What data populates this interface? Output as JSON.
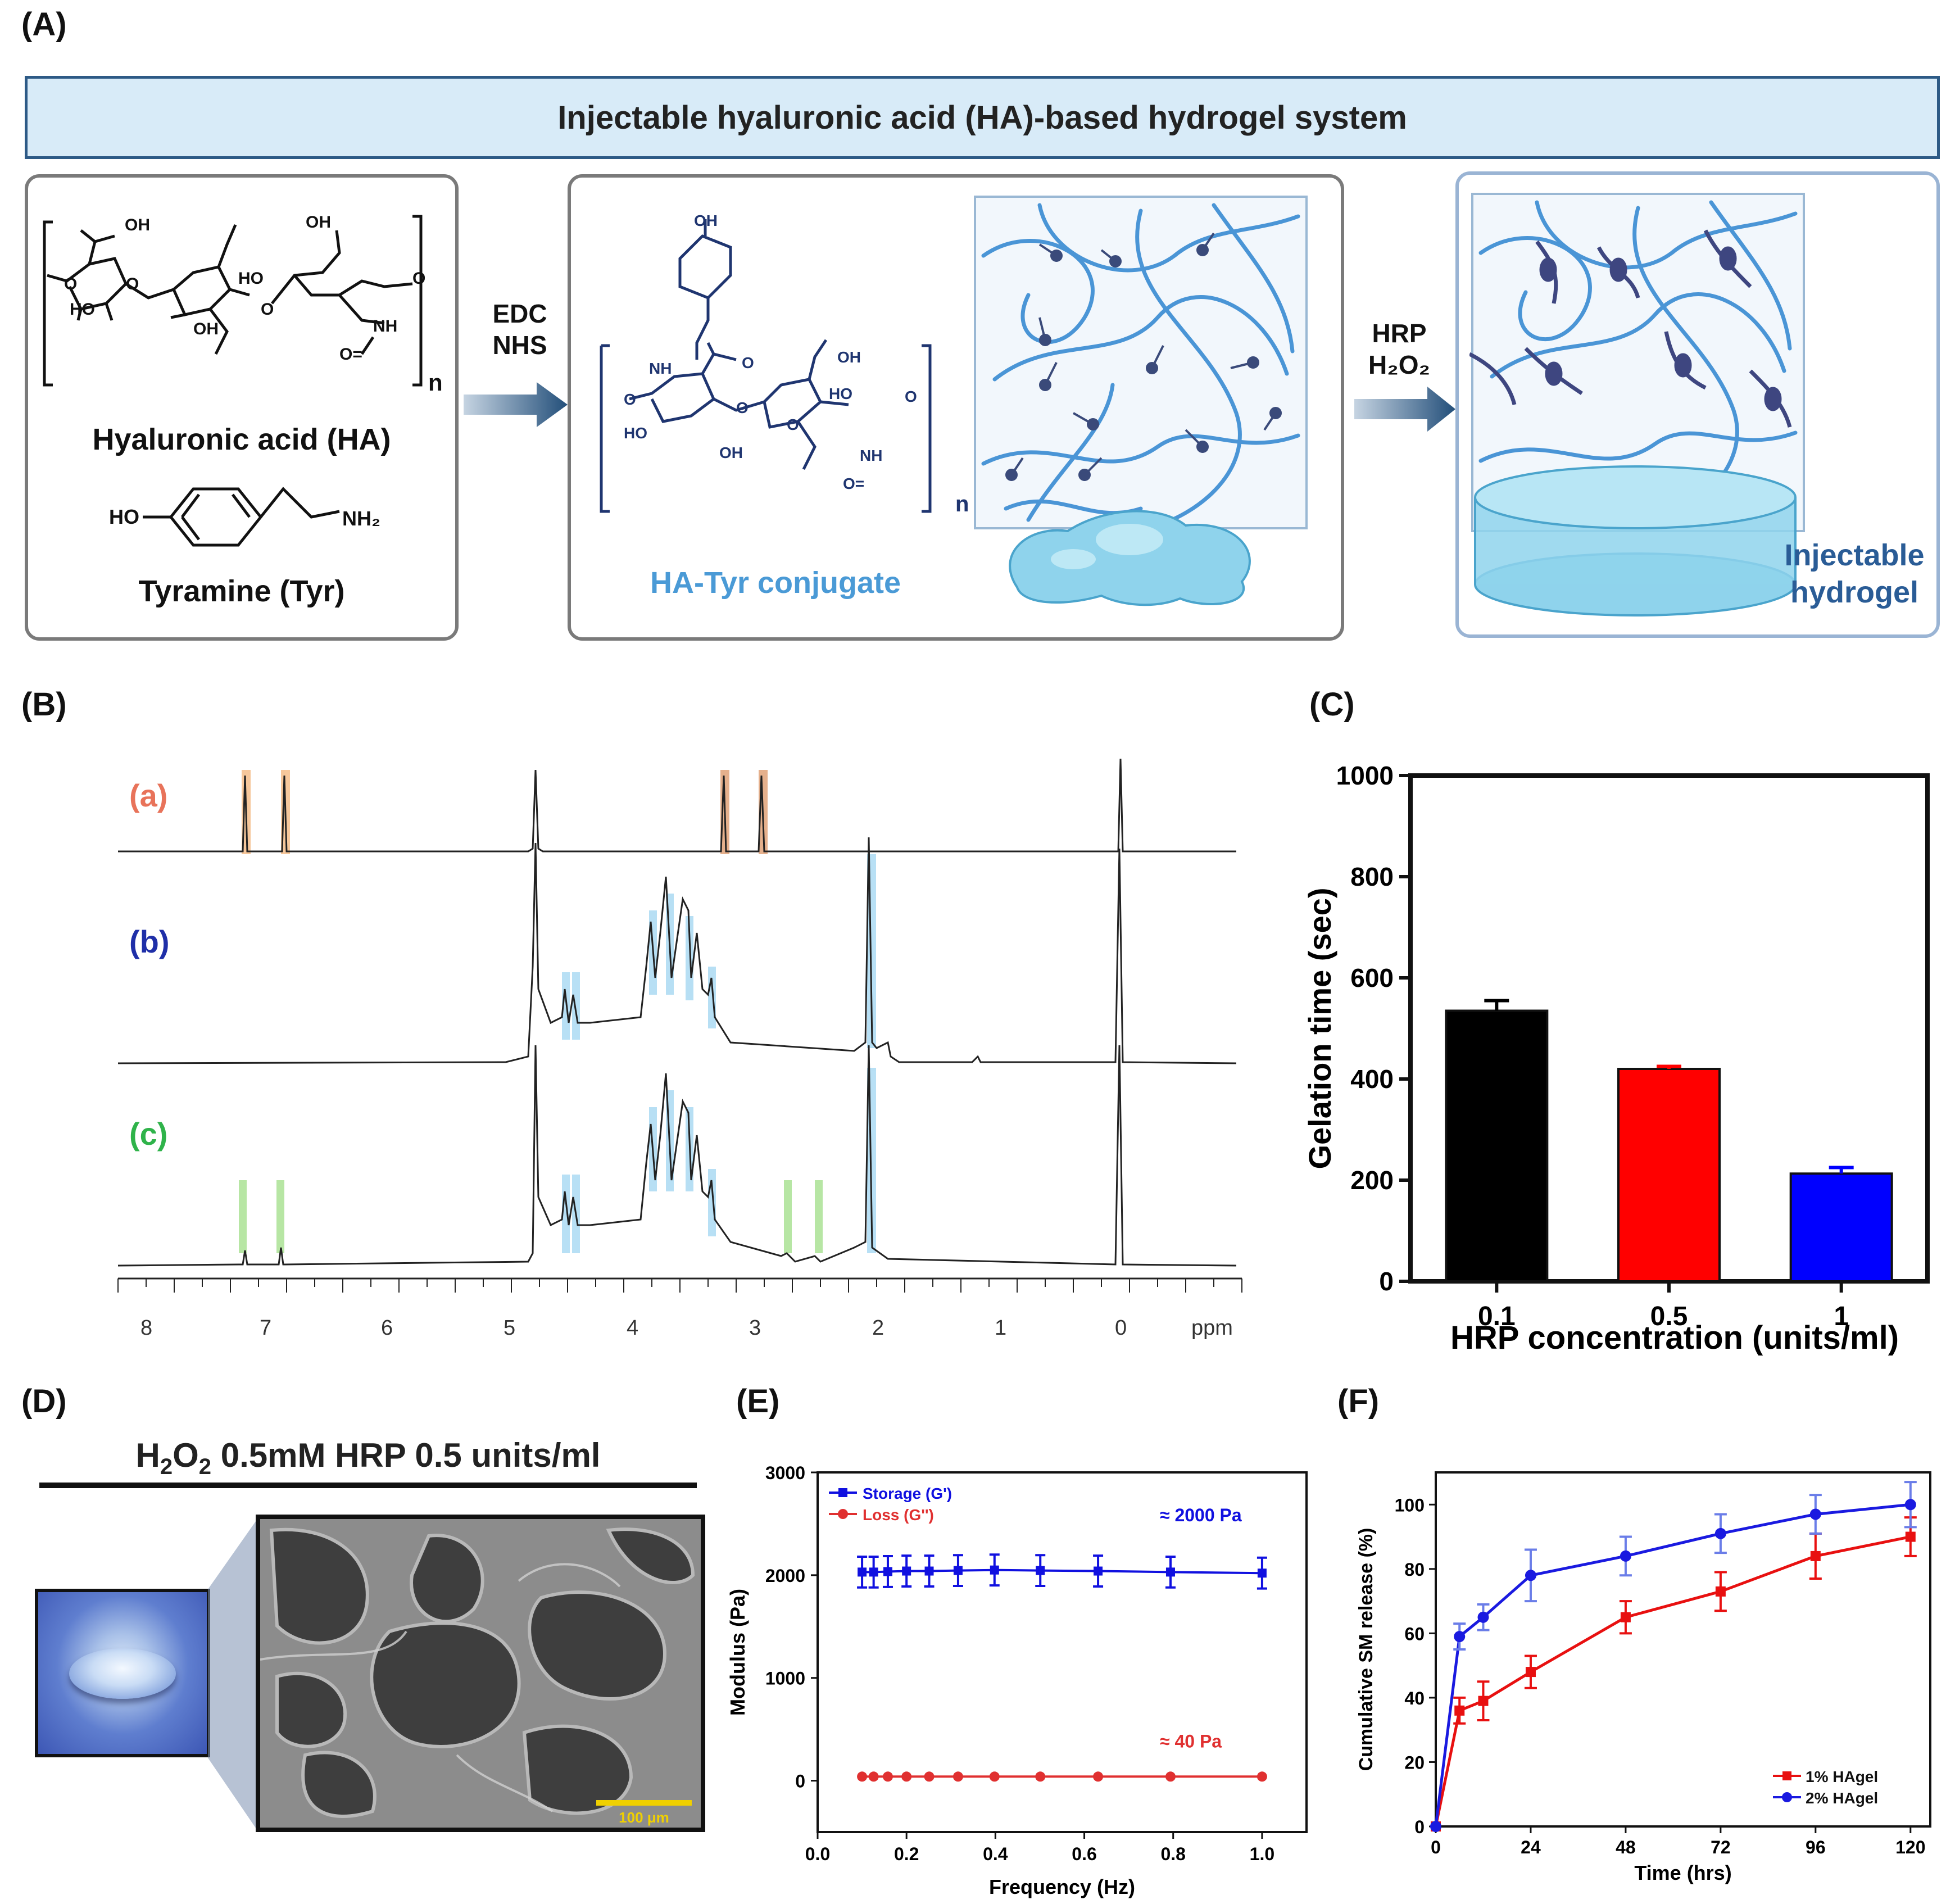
{
  "panels": {
    "A": "(A)",
    "B": "(B)",
    "C": "(C)",
    "D": "(D)",
    "E": "(E)",
    "F": "(F)"
  },
  "panelA": {
    "banner": "Injectable hyaluronic acid (HA)-based hydrogel system",
    "ha_label": "Hyaluronic acid (HA)",
    "tyr_label": "Tyramine (Tyr)",
    "step1": [
      "EDC",
      "NHS"
    ],
    "conjugate_label": "HA-Tyr conjugate",
    "step2": [
      "HRP",
      "H₂O₂"
    ],
    "hydrogel_label": [
      "Injectable",
      "hydrogel"
    ],
    "chem_text": {
      "oh": "OH",
      "ho": "HO",
      "nh": "NH",
      "o": "O",
      "n": "n",
      "nh2": "NH₂",
      "c_eq_o": "O="
    }
  },
  "panelB": {
    "traces": [
      "(a)",
      "(b)",
      "(c)"
    ],
    "trace_colors": [
      "#e8735a",
      "#1f2fa8",
      "#2fb34a"
    ],
    "ticks": [
      "8",
      "7",
      "6",
      "5",
      "4",
      "3",
      "2",
      "1",
      "0"
    ],
    "unit": "ppm"
  },
  "chart_data": [
    {
      "panel": "C",
      "type": "bar",
      "categories": [
        "0.1",
        "0.5",
        "1"
      ],
      "values": [
        535,
        420,
        213
      ],
      "errors": [
        20,
        5,
        12
      ],
      "colors": [
        "#000000",
        "#ff0000",
        "#0000ff"
      ],
      "ylabel": "Gelation time (sec)",
      "xlabel": "HRP concentration (units/ml)",
      "ylim": [
        0,
        1000
      ],
      "yticks": [
        "0",
        "200",
        "400",
        "600",
        "800",
        "1000"
      ]
    },
    {
      "panel": "E",
      "type": "line",
      "x": [
        0.1,
        0.126,
        0.158,
        0.2,
        0.251,
        0.316,
        0.398,
        0.501,
        0.631,
        0.794,
        1.0
      ],
      "series": [
        {
          "name": "Storage (G')",
          "color": "#1010e0",
          "values": [
            2030,
            2030,
            2035,
            2040,
            2040,
            2045,
            2050,
            2045,
            2040,
            2030,
            2020
          ],
          "error": 150
        },
        {
          "name": "Loss (G'')",
          "color": "#e03030",
          "values": [
            40,
            40,
            40,
            40,
            40,
            40,
            40,
            40,
            40,
            40,
            40
          ],
          "error": 0
        }
      ],
      "annotations": [
        "≈ 2000 Pa",
        "≈ 40 Pa"
      ],
      "xlabel": "Frequency (Hz)",
      "ylabel": "Modulus (Pa)",
      "xlim": [
        0,
        1.1
      ],
      "ylim": [
        -500,
        3000
      ],
      "xticks": [
        "0.0",
        "0.2",
        "0.4",
        "0.6",
        "0.8",
        "1.0"
      ],
      "yticks": [
        "0",
        "1000",
        "2000",
        "3000"
      ]
    },
    {
      "panel": "F",
      "type": "line",
      "x": [
        0,
        6,
        12,
        24,
        48,
        72,
        96,
        120
      ],
      "series": [
        {
          "name": "1% HAgel",
          "color": "#e81010",
          "marker": "square",
          "values": [
            0,
            36,
            39,
            48,
            65,
            73,
            84,
            90
          ],
          "errors": [
            0,
            4,
            6,
            5,
            5,
            6,
            7,
            6
          ]
        },
        {
          "name": "2% HAgel",
          "color": "#1a1ae0",
          "marker": "circle",
          "values": [
            0,
            59,
            65,
            78,
            84,
            91,
            97,
            100
          ],
          "errors": [
            0,
            4,
            4,
            8,
            6,
            6,
            6,
            7
          ]
        }
      ],
      "xlabel": "Time (hrs)",
      "ylabel": "Cumulative SM release (%)",
      "xlim": [
        0,
        125
      ],
      "ylim": [
        0,
        110
      ],
      "xticks": [
        "0",
        "24",
        "48",
        "72",
        "96",
        "120"
      ],
      "yticks": [
        "0",
        "20",
        "40",
        "60",
        "80",
        "100"
      ]
    }
  ],
  "panelD": {
    "title_h2o2": "H",
    "title_sub2a": "2",
    "title_o": "O",
    "title_sub2b": "2",
    "title_rest": " 0.5mM HRP 0.5 units/ml",
    "scalebar": "100 μm"
  }
}
